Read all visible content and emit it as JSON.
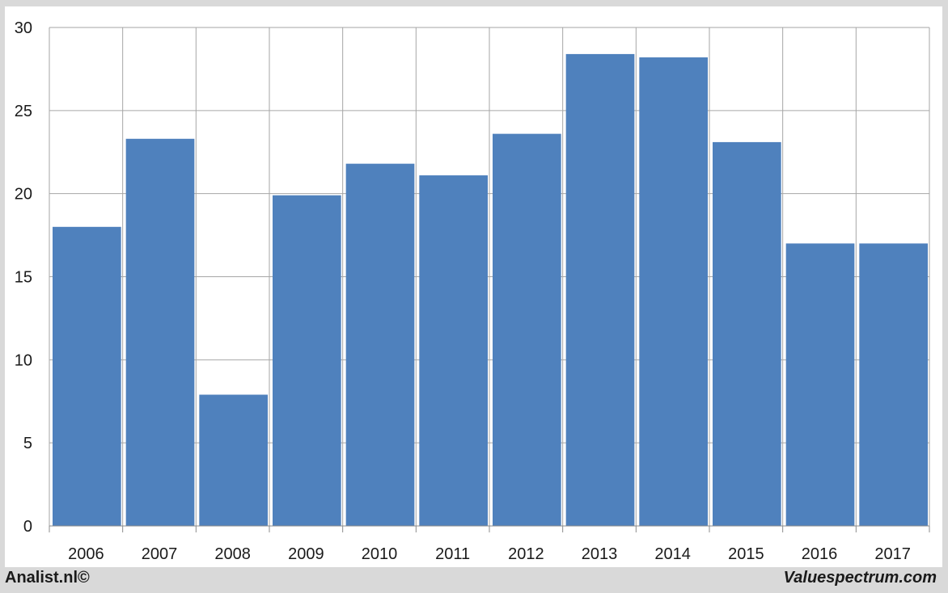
{
  "chart_data": {
    "type": "bar",
    "title": "",
    "xlabel": "",
    "ylabel": "",
    "categories": [
      "2006",
      "2007",
      "2008",
      "2009",
      "2010",
      "2011",
      "2012",
      "2013",
      "2014",
      "2015",
      "2016",
      "2017"
    ],
    "values": [
      18.0,
      23.3,
      7.9,
      19.9,
      21.8,
      21.1,
      23.6,
      28.4,
      28.2,
      23.1,
      17.0,
      17.0
    ],
    "ylim": [
      0,
      30
    ],
    "yticks": [
      0,
      5,
      10,
      15,
      20,
      25,
      30
    ],
    "grid": true,
    "bar_color": "#4f81bd",
    "grid_color": "#a6a6a6"
  },
  "footer": {
    "left": "Analist.nl©",
    "right": "Valuespectrum.com"
  }
}
